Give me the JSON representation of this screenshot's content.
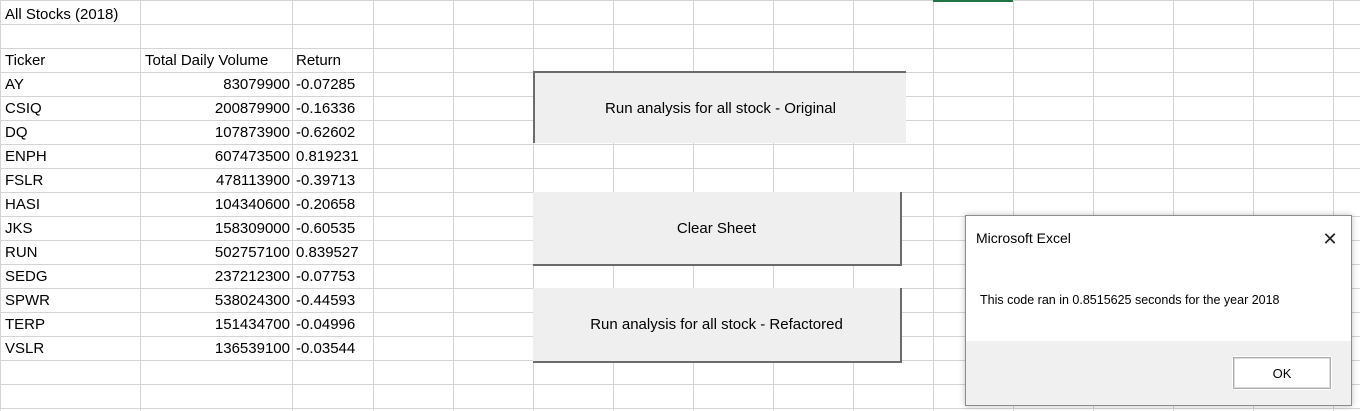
{
  "sheet": {
    "title": "All Stocks (2018)",
    "headers": {
      "ticker": "Ticker",
      "volume": "Total Daily Volume",
      "return": "Return"
    },
    "rows": [
      {
        "ticker": "AY",
        "volume": "83079900",
        "return": "-0.07285"
      },
      {
        "ticker": "CSIQ",
        "volume": "200879900",
        "return": "-0.16336"
      },
      {
        "ticker": "DQ",
        "volume": "107873900",
        "return": "-0.62602"
      },
      {
        "ticker": "ENPH",
        "volume": "607473500",
        "return": "0.819231"
      },
      {
        "ticker": "FSLR",
        "volume": "478113900",
        "return": "-0.39713"
      },
      {
        "ticker": "HASI",
        "volume": "104340600",
        "return": "-0.20658"
      },
      {
        "ticker": "JKS",
        "volume": "158309000",
        "return": "-0.60535"
      },
      {
        "ticker": "RUN",
        "volume": "502757100",
        "return": "0.839527"
      },
      {
        "ticker": "SEDG",
        "volume": "237212300",
        "return": "-0.07753"
      },
      {
        "ticker": "SPWR",
        "volume": "538024300",
        "return": "-0.44593"
      },
      {
        "ticker": "TERP",
        "volume": "151434700",
        "return": "-0.04996"
      },
      {
        "ticker": "VSLR",
        "volume": "136539100",
        "return": "-0.03544"
      }
    ]
  },
  "buttons": {
    "original": "Run analysis for all stock - Original",
    "clear": "Clear Sheet",
    "refactored": "Run analysis for all stock - Refactored"
  },
  "dialog": {
    "title": "Microsoft Excel",
    "close": "✕",
    "message": "This code ran in 0.8515625 seconds for the year 2018",
    "ok": "OK"
  },
  "colors": {
    "gridline": "#d4d4d4",
    "selection": "#217346",
    "button_face": "#efefef"
  }
}
